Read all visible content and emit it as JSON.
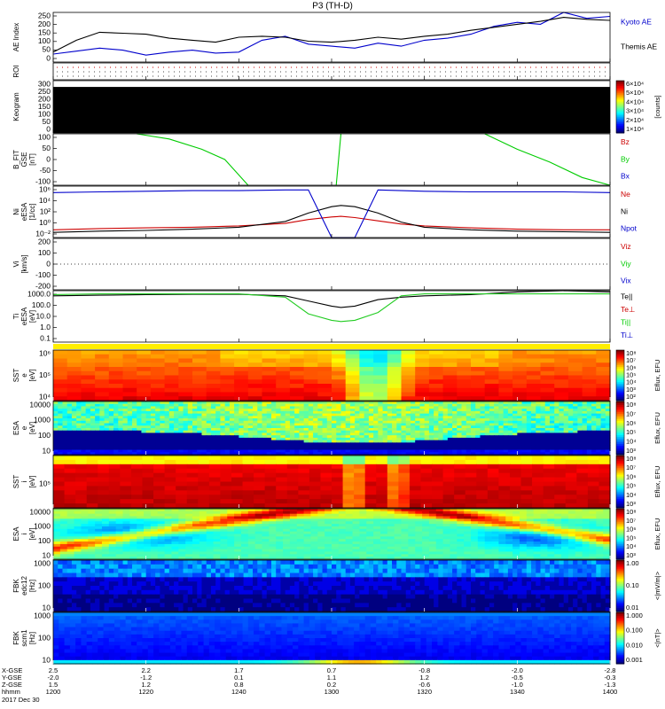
{
  "title": "P3 (TH-D)",
  "date_label": "2017 Dec 30",
  "colors": {
    "kyoto": "#0000cc",
    "themis": "#000000",
    "red": "#cc0000",
    "green": "#00cc00",
    "blue": "#0000cc",
    "green2": "#22cc22"
  },
  "panels": [
    {
      "id": "ae",
      "ylabel": [
        "AE Index"
      ],
      "ticks": [
        "250",
        "200",
        "150",
        "100",
        "50",
        "0"
      ],
      "legend": [
        {
          "text": "Kyoto AE",
          "color": "#0000cc"
        },
        {
          "text": "Themis AE",
          "color": "#000000"
        }
      ]
    },
    {
      "id": "roi",
      "ylabel": [
        "ROI"
      ],
      "ticks": [],
      "legend": []
    },
    {
      "id": "keogram",
      "ylabel": [
        "Keogram"
      ],
      "ticks": [
        "300",
        "250",
        "200",
        "150",
        "100",
        "50",
        "0"
      ],
      "colorbar": {
        "labels": [
          "6×10⁴",
          "5×10⁴",
          "4×10⁴",
          "3×10⁴",
          "2×10⁴",
          "1×10⁴"
        ],
        "unit": "[counts]"
      }
    },
    {
      "id": "bfit",
      "ylabel": [
        "B_FIT",
        "GSE",
        "[nT]"
      ],
      "ticks": [
        "100",
        "50",
        "0",
        "-50",
        "-100"
      ],
      "legend": [
        {
          "text": "Bz",
          "color": "#cc0000"
        },
        {
          "text": "By",
          "color": "#00cc00"
        },
        {
          "text": "Bx",
          "color": "#0000cc"
        }
      ]
    },
    {
      "id": "ni",
      "ylabel": [
        "Ni",
        "eESA",
        "[1/cc]"
      ],
      "ticks": [
        "10⁶",
        "10⁴",
        "10²",
        "10⁰",
        "10⁻²"
      ],
      "legend": [
        {
          "text": "Ne",
          "color": "#cc0000"
        },
        {
          "text": "Ni",
          "color": "#000000"
        },
        {
          "text": "Npot",
          "color": "#0000cc"
        }
      ]
    },
    {
      "id": "vi",
      "ylabel": [
        "Vi",
        "[km/s]"
      ],
      "ticks": [
        "200",
        "100",
        "0",
        "-100",
        "-200"
      ],
      "legend": [
        {
          "text": "Viz",
          "color": "#cc0000"
        },
        {
          "text": "Viy",
          "color": "#00cc00"
        },
        {
          "text": "Vix",
          "color": "#0000cc"
        }
      ]
    },
    {
      "id": "ti",
      "ylabel": [
        "Ti",
        "eESA",
        "[eV]"
      ],
      "ticks": [
        "1000.0",
        "100.0",
        "10.0",
        "1.0",
        "0.1"
      ],
      "legend": [
        {
          "text": "Te||",
          "color": "#000000"
        },
        {
          "text": "Te⊥",
          "color": "#cc0000"
        },
        {
          "text": "Ti||",
          "color": "#00cc00"
        },
        {
          "text": "Ti⊥",
          "color": "#0000cc"
        }
      ]
    },
    {
      "id": "sst_e",
      "ylabel": [
        "SST",
        "e",
        "[eV]"
      ],
      "ticks": [
        "10⁶",
        "10⁵",
        "10⁴"
      ],
      "colorbar": {
        "labels": [
          "10⁸",
          "10⁷",
          "10⁶",
          "10⁵",
          "10⁴",
          "10³",
          "10²"
        ],
        "unit": "Eflux, EFU"
      }
    },
    {
      "id": "esa_e",
      "ylabel": [
        "ESA",
        "e",
        "[eV]"
      ],
      "ticks": [
        "10000",
        "1000",
        "100",
        "10"
      ],
      "colorbar": {
        "labels": [
          "10⁸",
          "10⁷",
          "10⁶",
          "10⁵",
          "10⁴",
          "10³"
        ],
        "unit": "Eflux, EFU"
      }
    },
    {
      "id": "sst_i",
      "ylabel": [
        "SST",
        "i",
        "[eV]"
      ],
      "ticks": [
        "10⁵"
      ],
      "colorbar": {
        "labels": [
          "10⁸",
          "10⁷",
          "10⁶",
          "10⁵",
          "10⁴",
          "10³"
        ],
        "unit": "Eflux, EFU"
      }
    },
    {
      "id": "esa_i",
      "ylabel": [
        "ESA",
        "i",
        "[eV]"
      ],
      "ticks": [
        "10000",
        "1000",
        "100",
        "10"
      ],
      "colorbar": {
        "labels": [
          "10⁸",
          "10⁷",
          "10⁶",
          "10⁵",
          "10⁴",
          "10³"
        ],
        "unit": "Eflux, EFU"
      }
    },
    {
      "id": "fbk_e",
      "ylabel": [
        "FBK",
        "edc12",
        "[Hz]"
      ],
      "ticks": [
        "1000",
        "100",
        "10"
      ],
      "colorbar": {
        "labels": [
          "1.00",
          "0.10",
          "0.01"
        ],
        "unit": "<|mV/m|>"
      }
    },
    {
      "id": "fbk_b",
      "ylabel": [
        "FBK",
        "scm1",
        "[Hz]"
      ],
      "ticks": [
        "1000",
        "100",
        "10"
      ],
      "colorbar": {
        "labels": [
          "1.000",
          "0.100",
          "0.010",
          "0.001"
        ],
        "unit": "<|nT|>"
      }
    }
  ],
  "ephemeris": {
    "row_labels": [
      "X-GSE",
      "Y-GSE",
      "Z-GSE",
      "hhmm"
    ],
    "columns": [
      [
        "2.5",
        "-2.0",
        "1.5",
        "1200"
      ],
      [
        "2.2",
        "-1.2",
        "1.2",
        "1220"
      ],
      [
        "1.7",
        "0.1",
        "0.8",
        "1240"
      ],
      [
        "0.7",
        "1.1",
        "0.2",
        "1300"
      ],
      [
        "-0.8",
        "1.2",
        "-0.6",
        "1320"
      ],
      [
        "-2.0",
        "-0.5",
        "-1.0",
        "1340"
      ],
      [
        "-2.8",
        "-0.3",
        "-1.3",
        "1400"
      ]
    ]
  },
  "chart_data": [
    {
      "type": "line",
      "title": "AE Index",
      "x_range": [
        "12:00",
        "14:00"
      ],
      "ylim": [
        0,
        250
      ],
      "x": [
        0,
        5,
        10,
        15,
        20,
        25,
        30,
        35,
        40,
        45,
        50,
        55,
        60,
        65,
        70,
        75,
        80,
        85,
        90,
        95,
        100,
        105,
        110,
        115,
        120
      ],
      "series": [
        {
          "name": "Kyoto AE",
          "values": [
            40,
            55,
            70,
            60,
            35,
            50,
            60,
            45,
            50,
            110,
            130,
            90,
            80,
            70,
            95,
            80,
            110,
            120,
            140,
            180,
            200,
            190,
            250,
            220,
            230
          ]
        },
        {
          "name": "Themis AE",
          "values": [
            50,
            110,
            150,
            145,
            140,
            120,
            110,
            100,
            125,
            130,
            125,
            105,
            100,
            110,
            125,
            115,
            130,
            140,
            160,
            175,
            190,
            205,
            225,
            215,
            210
          ]
        }
      ]
    },
    {
      "type": "line",
      "title": "B_FIT GSE [nT]",
      "ylim": [
        -100,
        100
      ],
      "series": [
        {
          "name": "By",
          "segments": [
            {
              "x": [
                18,
                25,
                32,
                37,
                42
              ],
              "values": [
                100,
                80,
                40,
                0,
                -100
              ]
            },
            {
              "x": [
                61,
                62
              ],
              "values": [
                -100,
                100
              ]
            },
            {
              "x": [
                93,
                100,
                107,
                114,
                120
              ],
              "values": [
                100,
                40,
                -10,
                -70,
                -100
              ]
            }
          ]
        }
      ]
    },
    {
      "type": "line",
      "title": "Ni eESA [1/cc]",
      "ylim_log10": [
        -2,
        6
      ],
      "x": [
        0,
        10,
        20,
        30,
        40,
        50,
        55,
        60,
        62,
        65,
        70,
        75,
        80,
        90,
        100,
        110,
        120
      ],
      "series": [
        {
          "name": "Ne",
          "values_log10": [
            -0.8,
            -0.6,
            -0.5,
            -0.4,
            -0.2,
            0.2,
            0.8,
            1.2,
            1.3,
            1.1,
            0.6,
            0.1,
            -0.2,
            -0.5,
            -0.7,
            -0.8,
            -0.8
          ]
        },
        {
          "name": "Ni",
          "values_log10": [
            -1.2,
            -1.0,
            -0.9,
            -0.7,
            -0.4,
            0.5,
            1.8,
            2.8,
            3.0,
            2.8,
            1.8,
            0.4,
            -0.4,
            -0.8,
            -1.0,
            -1.1,
            -1.2
          ]
        },
        {
          "name": "Npot",
          "values_log10": [
            5.0,
            5.1,
            5.2,
            5.3,
            5.3,
            5.4,
            5.4,
            -2.0,
            -2.0,
            -2.0,
            5.4,
            5.3,
            5.2,
            5.1,
            5.1,
            5.1,
            5.0
          ]
        }
      ]
    },
    {
      "type": "line",
      "title": "Ti eESA [eV]",
      "ylim_log10": [
        -1,
        3
      ],
      "x": [
        0,
        10,
        20,
        30,
        40,
        50,
        55,
        60,
        62,
        65,
        70,
        75,
        80,
        90,
        100,
        110,
        120
      ],
      "series": [
        {
          "name": "Te||",
          "values_log10": [
            2.6,
            2.65,
            2.7,
            2.72,
            2.72,
            2.6,
            2.2,
            1.8,
            1.7,
            1.8,
            2.3,
            2.5,
            2.6,
            2.7,
            2.9,
            3.0,
            2.9
          ]
        },
        {
          "name": "Ti||",
          "values_log10": [
            2.7,
            2.75,
            2.75,
            2.75,
            2.75,
            2.5,
            1.2,
            0.7,
            0.6,
            0.7,
            1.3,
            2.6,
            2.75,
            2.75,
            2.75,
            2.75,
            2.75
          ]
        }
      ]
    }
  ]
}
